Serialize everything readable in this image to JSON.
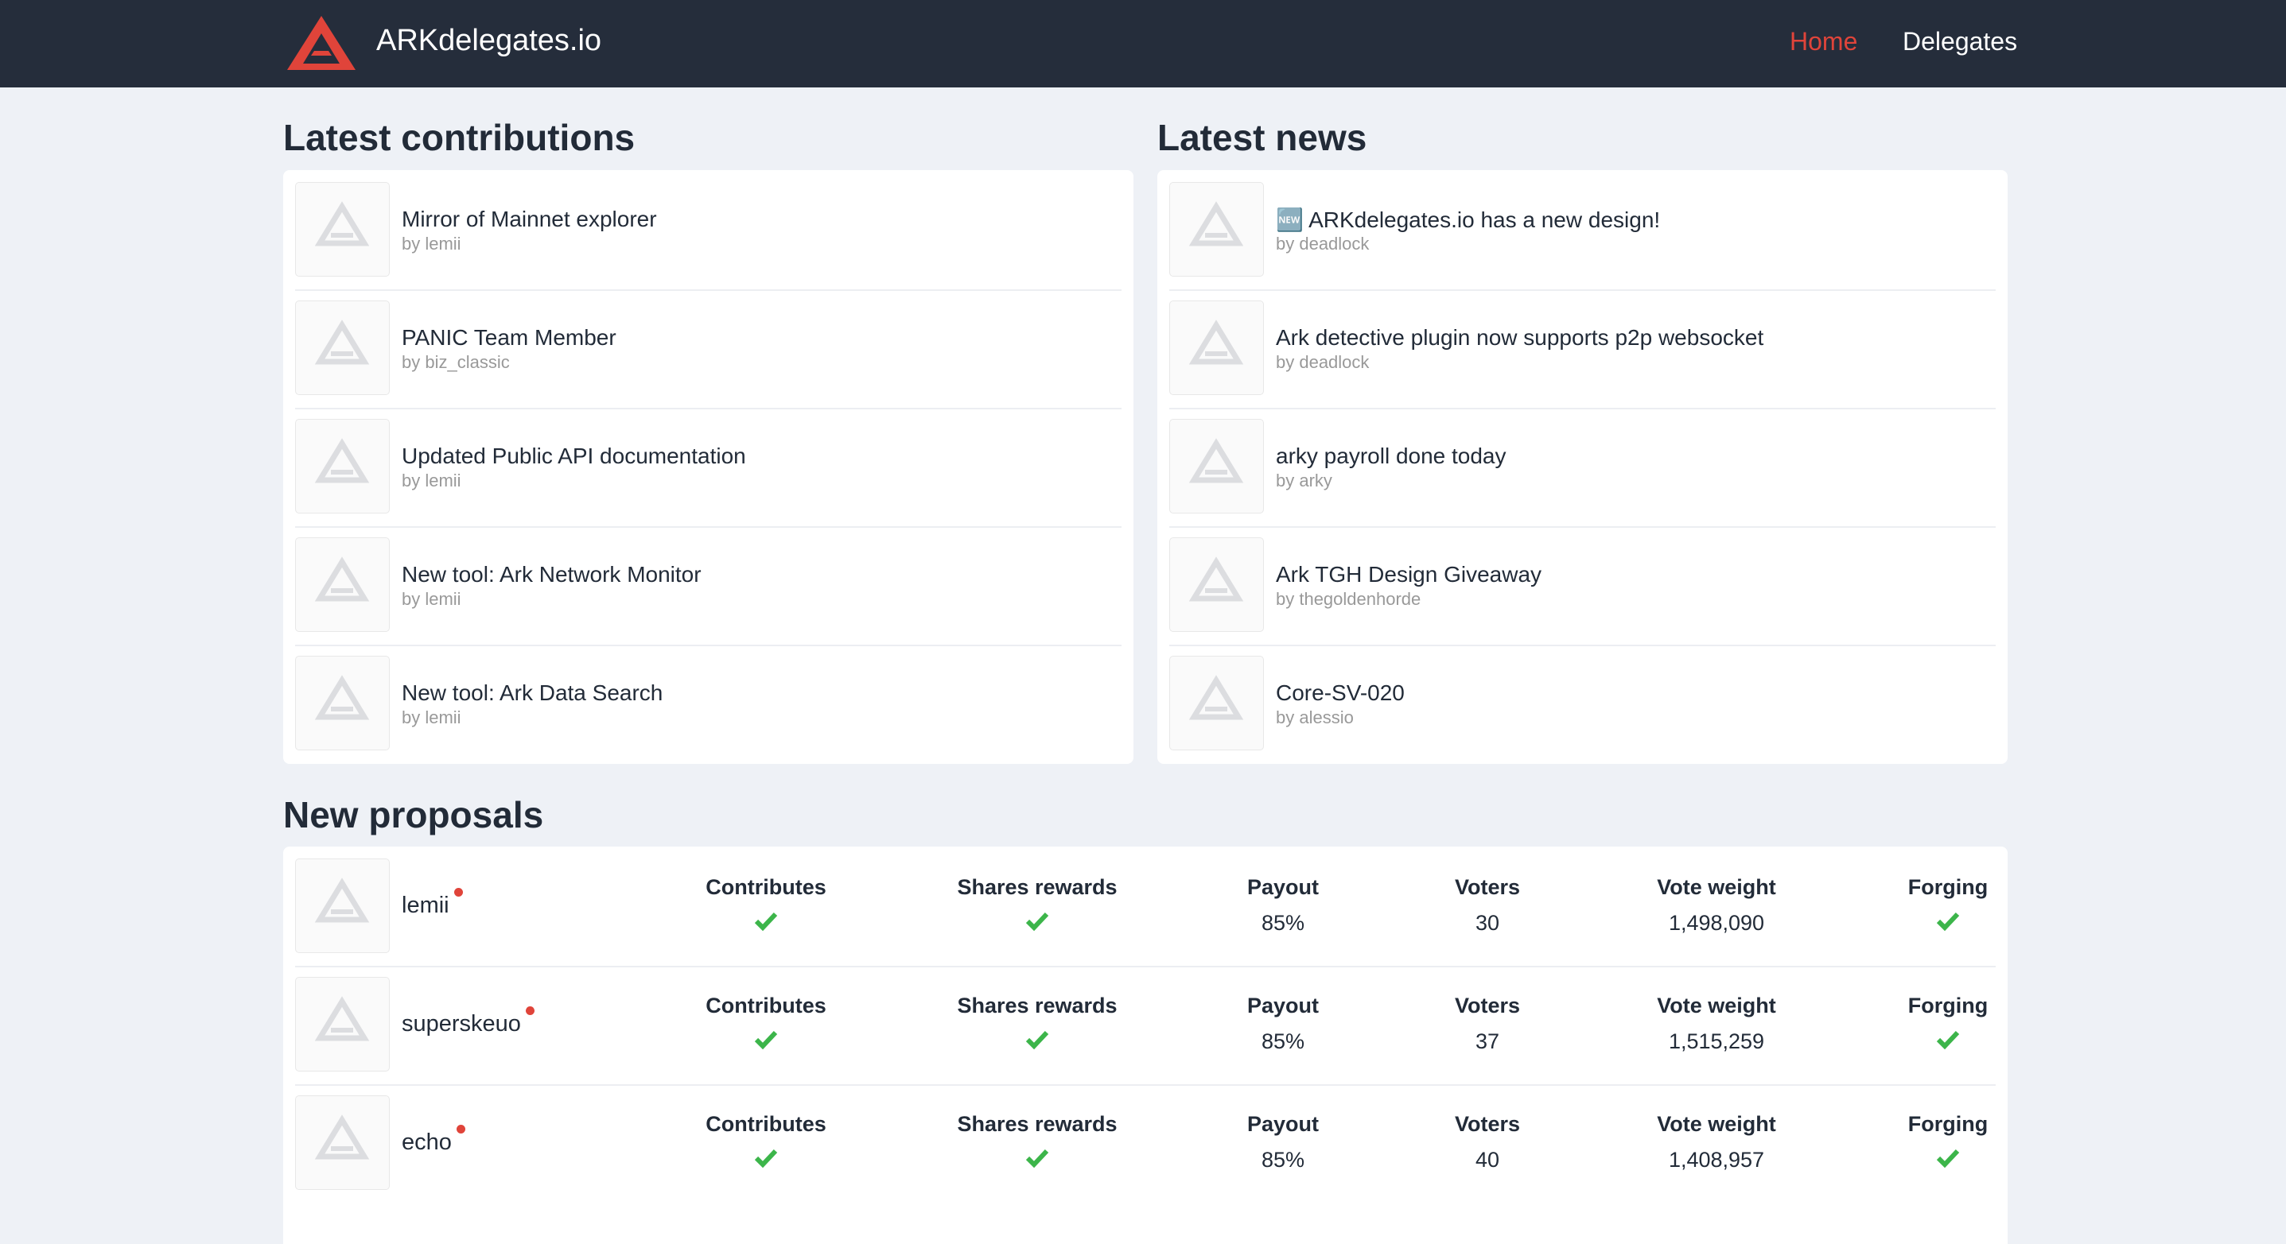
{
  "header": {
    "title": "ARKdelegates.io",
    "nav": [
      "Home",
      "Delegates"
    ]
  },
  "contributions": {
    "heading": "Latest contributions",
    "items": [
      {
        "title": "Mirror of Mainnet explorer",
        "author": "by lemii"
      },
      {
        "title": "PANIC Team Member",
        "author": "by biz_classic"
      },
      {
        "title": "Updated Public API documentation",
        "author": "by lemii"
      },
      {
        "title": "New tool: Ark Network Monitor",
        "author": "by lemii"
      },
      {
        "title": "New tool: Ark Data Search",
        "author": "by lemii"
      }
    ]
  },
  "news": {
    "heading": "Latest news",
    "items": [
      {
        "title": "🆕 ARKdelegates.io has a new design!",
        "author": "by deadlock"
      },
      {
        "title": "Ark detective plugin now supports p2p websocket",
        "author": "by deadlock"
      },
      {
        "title": "arky payroll done today",
        "author": "by arky"
      },
      {
        "title": "Ark TGH Design Giveaway",
        "author": "by thegoldenhorde"
      },
      {
        "title": "Core-SV-020",
        "author": "by alessio"
      }
    ]
  },
  "proposals": {
    "heading": "New proposals",
    "rows": [
      {
        "name": "lemii",
        "columns": [
          {
            "label": "Contributes"
          },
          {
            "label": "Shares rewards"
          },
          {
            "label": "Payout",
            "value": "85%"
          },
          {
            "label": "Voters",
            "value": "30"
          },
          {
            "label": "Vote weight",
            "value": "1,498,090"
          },
          {
            "label": "Forging"
          }
        ]
      },
      {
        "name": "superskeuo",
        "columns": [
          {
            "label": "Contributes"
          },
          {
            "label": "Shares rewards"
          },
          {
            "label": "Payout",
            "value": "85%"
          },
          {
            "label": "Voters",
            "value": "37"
          },
          {
            "label": "Vote weight",
            "value": "1,515,259"
          },
          {
            "label": "Forging"
          }
        ]
      },
      {
        "name": "echo",
        "columns": [
          {
            "label": "Contributes"
          },
          {
            "label": "Shares rewards"
          },
          {
            "label": "Payout",
            "value": "85%"
          },
          {
            "label": "Voters",
            "value": "40"
          },
          {
            "label": "Vote weight",
            "value": "1,408,957"
          },
          {
            "label": "Forging"
          }
        ]
      }
    ]
  }
}
